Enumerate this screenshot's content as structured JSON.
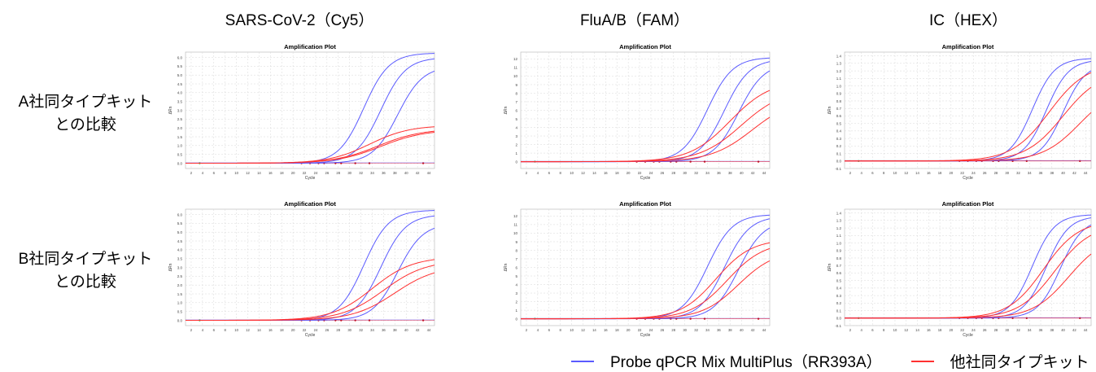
{
  "columns": [
    "SARS-CoV-2（Cy5）",
    "FluA/B（FAM）",
    "IC（HEX）"
  ],
  "rows": [
    "A社同タイプキット\nとの比較",
    "B社同タイプキット\nとの比較"
  ],
  "legend": {
    "blue_label": "Probe qPCR Mix MultiPlus（RR393A）",
    "red_label": "他社同タイプキット",
    "blue_color": "#5a5aff",
    "red_color": "#ff3030"
  },
  "chart_data": [
    {
      "type": "line",
      "title": "Amplification Plot",
      "xlabel": "Cycle",
      "ylabel": "ΔRn",
      "panel": "SARS-CoV-2（Cy5）",
      "row": "A社同タイプキット との比較",
      "xlim": [
        1,
        45
      ],
      "ylim": [
        -0.3,
        6.3
      ],
      "xticks": [
        2,
        4,
        6,
        8,
        10,
        12,
        14,
        16,
        18,
        20,
        22,
        24,
        26,
        28,
        30,
        32,
        34,
        36,
        38,
        40,
        42,
        44
      ],
      "yticks": [
        0.0,
        0.5,
        1.0,
        1.5,
        2.0,
        2.5,
        3.0,
        3.5,
        4.0,
        4.5,
        5.0,
        5.5,
        6.0
      ],
      "ytick_decimals": 1,
      "grid": true,
      "series": [
        {
          "color": "blue",
          "curve": {
            "ct": 32.5,
            "plateau": 6.25,
            "k": 0.45
          }
        },
        {
          "color": "blue",
          "curve": {
            "ct": 35.5,
            "plateau": 6.0,
            "k": 0.45
          }
        },
        {
          "color": "blue",
          "curve": {
            "ct": 38.5,
            "plateau": 5.5,
            "k": 0.45
          }
        },
        {
          "color": "red",
          "curve": {
            "ct": 33.5,
            "plateau": 2.15,
            "k": 0.28
          }
        },
        {
          "color": "red",
          "curve": {
            "ct": 35.0,
            "plateau": 1.95,
            "k": 0.26
          }
        },
        {
          "color": "red",
          "curve": {
            "ct": 35.5,
            "plateau": 1.9,
            "k": 0.26
          }
        }
      ]
    },
    {
      "type": "line",
      "title": "Amplification Plot",
      "xlabel": "Cycle",
      "ylabel": "ΔRn",
      "panel": "FluA/B（FAM）",
      "row": "A社同タイプキット との比較",
      "xlim": [
        1,
        45
      ],
      "ylim": [
        -0.8,
        12.8
      ],
      "xticks": [
        2,
        4,
        6,
        8,
        10,
        12,
        14,
        16,
        18,
        20,
        22,
        24,
        26,
        28,
        30,
        32,
        34,
        36,
        38,
        40,
        42,
        44
      ],
      "yticks": [
        0,
        1,
        2,
        3,
        4,
        5,
        6,
        7,
        8,
        9,
        10,
        11,
        12
      ],
      "ytick_decimals": 0,
      "grid": true,
      "series": [
        {
          "color": "blue",
          "curve": {
            "ct": 34.0,
            "plateau": 12.2,
            "k": 0.45
          }
        },
        {
          "color": "blue",
          "curve": {
            "ct": 37.0,
            "plateau": 12.0,
            "k": 0.45
          }
        },
        {
          "color": "blue",
          "curve": {
            "ct": 39.5,
            "plateau": 11.5,
            "k": 0.45
          }
        },
        {
          "color": "red",
          "curve": {
            "ct": 38.0,
            "plateau": 9.5,
            "k": 0.28
          }
        },
        {
          "color": "red",
          "curve": {
            "ct": 40.0,
            "plateau": 8.5,
            "k": 0.27
          }
        },
        {
          "color": "red",
          "curve": {
            "ct": 42.0,
            "plateau": 7.5,
            "k": 0.27
          }
        }
      ]
    },
    {
      "type": "line",
      "title": "Amplification Plot",
      "xlabel": "Cycle",
      "ylabel": "ΔRn",
      "panel": "IC（HEX）",
      "row": "A社同タイプキット との比較",
      "xlim": [
        1,
        45
      ],
      "ylim": [
        -0.1,
        1.45
      ],
      "xticks": [
        2,
        4,
        6,
        8,
        10,
        12,
        14,
        16,
        18,
        20,
        22,
        24,
        26,
        28,
        30,
        32,
        34,
        36,
        38,
        40,
        42,
        44
      ],
      "yticks": [
        -0.1,
        0.0,
        0.1,
        0.2,
        0.3,
        0.4,
        0.5,
        0.6,
        0.7,
        0.8,
        0.9,
        1.0,
        1.1,
        1.2,
        1.3,
        1.4
      ],
      "ytick_decimals": 1,
      "grid": true,
      "series": [
        {
          "color": "blue",
          "curve": {
            "ct": 34.5,
            "plateau": 1.37,
            "k": 0.5
          }
        },
        {
          "color": "blue",
          "curve": {
            "ct": 37.0,
            "plateau": 1.35,
            "k": 0.5
          }
        },
        {
          "color": "blue",
          "curve": {
            "ct": 40.0,
            "plateau": 1.3,
            "k": 0.5
          }
        },
        {
          "color": "red",
          "curve": {
            "ct": 37.5,
            "plateau": 1.3,
            "k": 0.3
          }
        },
        {
          "color": "red",
          "curve": {
            "ct": 40.0,
            "plateau": 1.2,
            "k": 0.3
          }
        },
        {
          "color": "red",
          "curve": {
            "ct": 43.0,
            "plateau": 1.0,
            "k": 0.3
          }
        }
      ]
    },
    {
      "type": "line",
      "title": "Amplification Plot",
      "xlabel": "Cycle",
      "ylabel": "ΔRn",
      "panel": "SARS-CoV-2（Cy5）",
      "row": "B社同タイプキット との比較",
      "xlim": [
        1,
        45
      ],
      "ylim": [
        -0.3,
        6.3
      ],
      "xticks": [
        2,
        4,
        6,
        8,
        10,
        12,
        14,
        16,
        18,
        20,
        22,
        24,
        26,
        28,
        30,
        32,
        34,
        36,
        38,
        40,
        42,
        44
      ],
      "yticks": [
        0.0,
        0.5,
        1.0,
        1.5,
        2.0,
        2.5,
        3.0,
        3.5,
        4.0,
        4.5,
        5.0,
        5.5,
        6.0
      ],
      "ytick_decimals": 1,
      "grid": true,
      "series": [
        {
          "color": "blue",
          "curve": {
            "ct": 32.5,
            "plateau": 6.25,
            "k": 0.45
          }
        },
        {
          "color": "blue",
          "curve": {
            "ct": 35.5,
            "plateau": 6.0,
            "k": 0.45
          }
        },
        {
          "color": "blue",
          "curve": {
            "ct": 38.5,
            "plateau": 5.5,
            "k": 0.45
          }
        },
        {
          "color": "red",
          "curve": {
            "ct": 34.0,
            "plateau": 3.6,
            "k": 0.28
          }
        },
        {
          "color": "red",
          "curve": {
            "ct": 36.0,
            "plateau": 3.4,
            "k": 0.27
          }
        },
        {
          "color": "red",
          "curve": {
            "ct": 38.0,
            "plateau": 3.1,
            "k": 0.27
          }
        }
      ]
    },
    {
      "type": "line",
      "title": "Amplification Plot",
      "xlabel": "Cycle",
      "ylabel": "ΔRn",
      "panel": "FluA/B（FAM）",
      "row": "B社同タイプキット との比較",
      "xlim": [
        1,
        45
      ],
      "ylim": [
        -0.8,
        12.8
      ],
      "xticks": [
        2,
        4,
        6,
        8,
        10,
        12,
        14,
        16,
        18,
        20,
        22,
        24,
        26,
        28,
        30,
        32,
        34,
        36,
        38,
        40,
        42,
        44
      ],
      "yticks": [
        0,
        1,
        2,
        3,
        4,
        5,
        6,
        7,
        8,
        9,
        10,
        11,
        12
      ],
      "ytick_decimals": 0,
      "grid": true,
      "series": [
        {
          "color": "blue",
          "curve": {
            "ct": 34.0,
            "plateau": 12.2,
            "k": 0.45
          }
        },
        {
          "color": "blue",
          "curve": {
            "ct": 37.0,
            "plateau": 12.0,
            "k": 0.45
          }
        },
        {
          "color": "blue",
          "curve": {
            "ct": 39.5,
            "plateau": 11.5,
            "k": 0.45
          }
        },
        {
          "color": "red",
          "curve": {
            "ct": 35.5,
            "plateau": 9.3,
            "k": 0.32
          }
        },
        {
          "color": "red",
          "curve": {
            "ct": 37.5,
            "plateau": 9.0,
            "k": 0.31
          }
        },
        {
          "color": "red",
          "curve": {
            "ct": 39.5,
            "plateau": 8.0,
            "k": 0.31
          }
        }
      ]
    },
    {
      "type": "line",
      "title": "Amplification Plot",
      "xlabel": "Cycle",
      "ylabel": "ΔRn",
      "panel": "IC（HEX）",
      "row": "B社同タイプキット との比較",
      "xlim": [
        1,
        45
      ],
      "ylim": [
        -0.1,
        1.45
      ],
      "xticks": [
        2,
        4,
        6,
        8,
        10,
        12,
        14,
        16,
        18,
        20,
        22,
        24,
        26,
        28,
        30,
        32,
        34,
        36,
        38,
        40,
        42,
        44
      ],
      "yticks": [
        -0.1,
        0.0,
        0.1,
        0.2,
        0.3,
        0.4,
        0.5,
        0.6,
        0.7,
        0.8,
        0.9,
        1.0,
        1.1,
        1.2,
        1.3,
        1.4
      ],
      "ytick_decimals": 1,
      "grid": true,
      "series": [
        {
          "color": "blue",
          "curve": {
            "ct": 34.5,
            "plateau": 1.38,
            "k": 0.5
          }
        },
        {
          "color": "blue",
          "curve": {
            "ct": 37.0,
            "plateau": 1.36,
            "k": 0.5
          }
        },
        {
          "color": "blue",
          "curve": {
            "ct": 39.5,
            "plateau": 1.32,
            "k": 0.5
          }
        },
        {
          "color": "red",
          "curve": {
            "ct": 36.5,
            "plateau": 1.3,
            "k": 0.32
          }
        },
        {
          "color": "red",
          "curve": {
            "ct": 38.5,
            "plateau": 1.25,
            "k": 0.31
          }
        },
        {
          "color": "red",
          "curve": {
            "ct": 41.0,
            "plateau": 1.1,
            "k": 0.31
          }
        }
      ]
    }
  ]
}
